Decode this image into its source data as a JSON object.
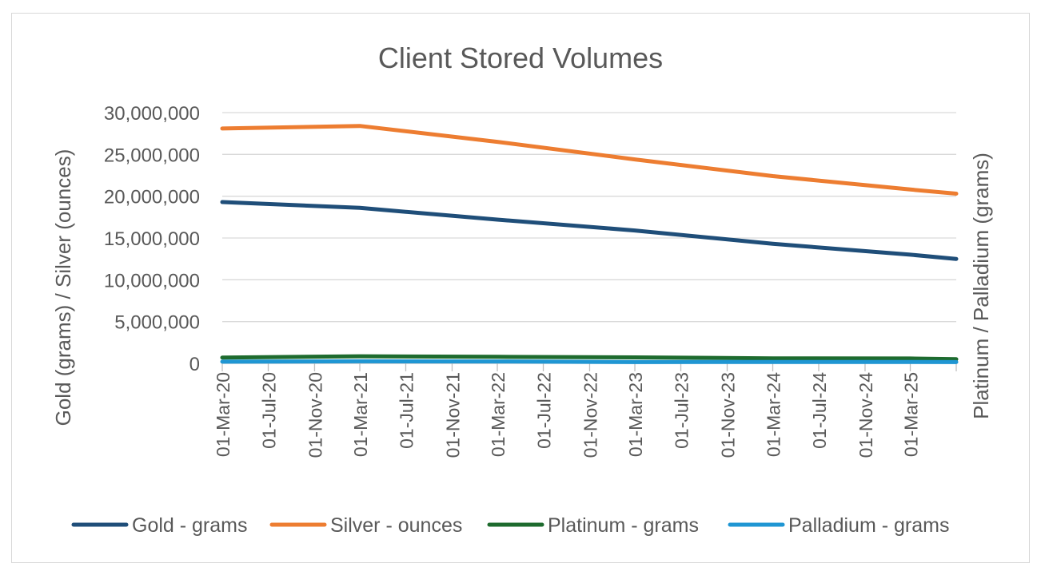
{
  "chart_data": {
    "type": "line",
    "title": "Client Stored Volumes",
    "ylabel": "Gold (grams) / Silver (ounces)",
    "y2label": "Platinum / Palladium (grams)",
    "ylim": [
      0,
      30000000
    ],
    "yticks": [
      "0",
      "5,000,000",
      "10,000,000",
      "15,000,000",
      "20,000,000",
      "25,000,000",
      "30,000,000"
    ],
    "ytick_values": [
      0,
      5000000,
      10000000,
      15000000,
      20000000,
      25000000,
      30000000
    ],
    "xlim": [
      "2020-03-01",
      "2025-07-01"
    ],
    "xtick_dates": [
      "2020-03-01",
      "2020-07-01",
      "2020-11-01",
      "2021-03-01",
      "2021-07-01",
      "2021-11-01",
      "2022-03-01",
      "2022-07-01",
      "2022-11-01",
      "2023-03-01",
      "2023-07-01",
      "2023-11-01",
      "2024-03-01",
      "2024-07-01",
      "2024-11-01",
      "2025-03-01"
    ],
    "xticks": [
      "01-Mar-20",
      "01-Jul-20",
      "01-Nov-20",
      "01-Mar-21",
      "01-Jul-21",
      "01-Nov-21",
      "01-Mar-22",
      "01-Jul-22",
      "01-Nov-22",
      "01-Mar-23",
      "01-Jul-23",
      "01-Nov-23",
      "01-Mar-24",
      "01-Jul-24",
      "01-Nov-24",
      "01-Mar-25"
    ],
    "grid": "horizontal",
    "legend_position": "bottom",
    "series": [
      {
        "name": "Gold - grams",
        "color": "#1f4e79",
        "points": [
          {
            "x": "2020-03-01",
            "y": 19300000
          },
          {
            "x": "2021-03-01",
            "y": 18600000
          },
          {
            "x": "2022-03-01",
            "y": 17200000
          },
          {
            "x": "2023-03-01",
            "y": 15900000
          },
          {
            "x": "2024-03-01",
            "y": 14300000
          },
          {
            "x": "2025-03-01",
            "y": 13000000
          },
          {
            "x": "2025-07-01",
            "y": 12500000
          }
        ]
      },
      {
        "name": "Silver - ounces",
        "color": "#ed7d31",
        "points": [
          {
            "x": "2020-03-01",
            "y": 28100000
          },
          {
            "x": "2021-03-01",
            "y": 28400000
          },
          {
            "x": "2022-03-01",
            "y": 26500000
          },
          {
            "x": "2023-03-01",
            "y": 24400000
          },
          {
            "x": "2024-03-01",
            "y": 22400000
          },
          {
            "x": "2025-03-01",
            "y": 20800000
          },
          {
            "x": "2025-07-01",
            "y": 20300000
          }
        ]
      },
      {
        "name": "Platinum - grams",
        "color": "#1e6b2e",
        "points": [
          {
            "x": "2020-03-01",
            "y": 700000
          },
          {
            "x": "2021-03-01",
            "y": 850000
          },
          {
            "x": "2022-03-01",
            "y": 780000
          },
          {
            "x": "2023-03-01",
            "y": 720000
          },
          {
            "x": "2024-03-01",
            "y": 600000
          },
          {
            "x": "2025-03-01",
            "y": 580000
          },
          {
            "x": "2025-07-01",
            "y": 500000
          }
        ]
      },
      {
        "name": "Palladium - grams",
        "color": "#1f96d3",
        "points": [
          {
            "x": "2020-03-01",
            "y": 200000
          },
          {
            "x": "2021-03-01",
            "y": 250000
          },
          {
            "x": "2022-03-01",
            "y": 230000
          },
          {
            "x": "2023-03-01",
            "y": 150000
          },
          {
            "x": "2024-03-01",
            "y": 170000
          },
          {
            "x": "2025-03-01",
            "y": 160000
          },
          {
            "x": "2025-07-01",
            "y": 150000
          }
        ]
      }
    ]
  }
}
